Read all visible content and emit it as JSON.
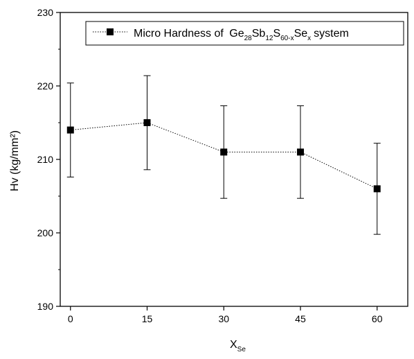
{
  "chart_data": {
    "type": "scatter",
    "x": [
      0,
      15,
      30,
      45,
      60
    ],
    "series": [
      {
        "name": "Micro Hardness of Ge28Sb12S60-xSex system",
        "values": [
          214,
          215,
          211,
          211,
          206
        ],
        "error": [
          6.4,
          6.4,
          6.3,
          6.3,
          6.2
        ],
        "marker": "square",
        "line": "dotted",
        "color": "#000000"
      }
    ],
    "legend": {
      "marker_label": "Micro Hardness of",
      "formula": [
        {
          "t": "Ge",
          "s": "28"
        },
        {
          "t": "Sb",
          "s": "12"
        },
        {
          "t": "S",
          "s": "60-x"
        },
        {
          "t": "Se",
          "s": "x"
        }
      ],
      "suffix": "system",
      "position": "top-right"
    },
    "xlabel_main": "X",
    "xlabel_sub": "Se",
    "ylabel": "Hv (kg/mm²)",
    "xlim": [
      -2,
      66
    ],
    "ylim": [
      190,
      230
    ],
    "xticks": [
      0,
      15,
      30,
      45,
      60
    ],
    "yticks": [
      190,
      200,
      210,
      220,
      230
    ],
    "grid": false
  }
}
